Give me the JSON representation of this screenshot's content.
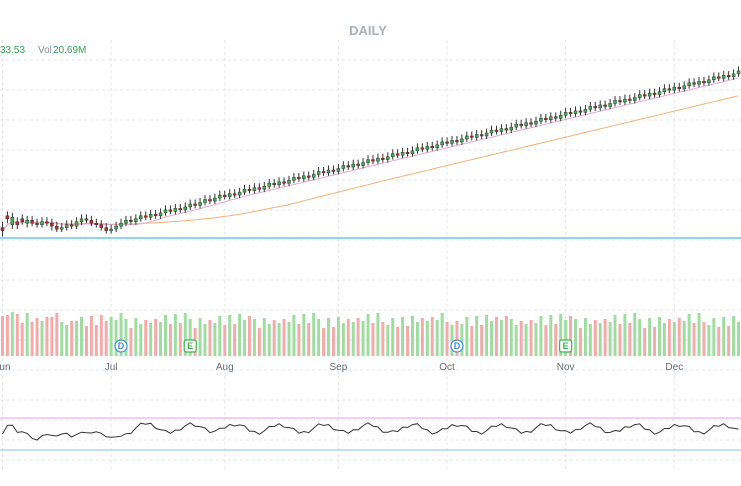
{
  "chart_data": {
    "type": "candlestick",
    "title": "DAILY",
    "info": {
      "last": "33.53",
      "vol_label": "Vol",
      "vol_value": "20.69M"
    },
    "months": [
      {
        "label": "Jun",
        "index": 0
      },
      {
        "label": "Jul",
        "index": 22
      },
      {
        "label": "Aug",
        "index": 45
      },
      {
        "label": "Sep",
        "index": 68
      },
      {
        "label": "Oct",
        "index": 90
      },
      {
        "label": "Nov",
        "index": 114
      },
      {
        "label": "Dec",
        "index": 136
      }
    ],
    "events": [
      {
        "type": "D",
        "index": 24
      },
      {
        "type": "E",
        "index": 38
      },
      {
        "type": "E",
        "index": 114
      },
      {
        "type": "D",
        "index": 92
      }
    ],
    "candles": [
      [
        0,
        178,
        176,
        182,
        172
      ],
      [
        1,
        186,
        184,
        189,
        181
      ],
      [
        2,
        180,
        185,
        188,
        177
      ],
      [
        3,
        182,
        180,
        185,
        177
      ],
      [
        4,
        184,
        182,
        187,
        180
      ],
      [
        5,
        181,
        183,
        186,
        178
      ],
      [
        6,
        183,
        181,
        186,
        179
      ],
      [
        7,
        181,
        180,
        184,
        178
      ],
      [
        8,
        180,
        182,
        185,
        178
      ],
      [
        9,
        182,
        181,
        185,
        179
      ],
      [
        10,
        181,
        179,
        184,
        176
      ],
      [
        11,
        179,
        177,
        182,
        175
      ],
      [
        12,
        177,
        178,
        181,
        175
      ],
      [
        13,
        178,
        180,
        183,
        176
      ],
      [
        14,
        180,
        179,
        183,
        177
      ],
      [
        15,
        179,
        182,
        185,
        177
      ],
      [
        16,
        182,
        184,
        187,
        180
      ],
      [
        17,
        184,
        183,
        187,
        181
      ],
      [
        18,
        183,
        181,
        186,
        179
      ],
      [
        19,
        181,
        180,
        184,
        178
      ],
      [
        20,
        180,
        178,
        183,
        176
      ],
      [
        21,
        178,
        176,
        181,
        174
      ],
      [
        22,
        176,
        177,
        180,
        174
      ],
      [
        23,
        177,
        179,
        182,
        175
      ],
      [
        24,
        179,
        181,
        184,
        177
      ],
      [
        25,
        181,
        183,
        186,
        179
      ],
      [
        26,
        183,
        182,
        186,
        180
      ],
      [
        27,
        182,
        184,
        187,
        180
      ],
      [
        28,
        184,
        186,
        189,
        182
      ],
      [
        29,
        186,
        185,
        189,
        183
      ],
      [
        30,
        185,
        187,
        190,
        183
      ],
      [
        31,
        187,
        186,
        190,
        184
      ],
      [
        32,
        186,
        188,
        191,
        184
      ],
      [
        33,
        188,
        190,
        193,
        186
      ],
      [
        34,
        190,
        189,
        193,
        187
      ],
      [
        35,
        189,
        191,
        194,
        187
      ],
      [
        36,
        191,
        190,
        194,
        188
      ],
      [
        37,
        190,
        192,
        195,
        188
      ],
      [
        38,
        192,
        194,
        197,
        190
      ],
      [
        39,
        194,
        193,
        197,
        191
      ],
      [
        40,
        193,
        195,
        198,
        191
      ],
      [
        41,
        195,
        197,
        200,
        193
      ],
      [
        42,
        197,
        196,
        200,
        194
      ],
      [
        43,
        196,
        198,
        201,
        194
      ],
      [
        44,
        198,
        200,
        203,
        196
      ],
      [
        45,
        200,
        199,
        203,
        197
      ],
      [
        46,
        199,
        201,
        204,
        197
      ],
      [
        47,
        201,
        200,
        204,
        198
      ],
      [
        48,
        200,
        202,
        205,
        198
      ],
      [
        49,
        202,
        204,
        207,
        200
      ],
      [
        50,
        204,
        203,
        207,
        201
      ],
      [
        51,
        203,
        205,
        208,
        201
      ],
      [
        52,
        205,
        204,
        208,
        202
      ],
      [
        53,
        204,
        206,
        209,
        202
      ],
      [
        54,
        206,
        208,
        211,
        204
      ],
      [
        55,
        208,
        207,
        211,
        205
      ],
      [
        56,
        207,
        209,
        212,
        205
      ],
      [
        57,
        209,
        208,
        212,
        206
      ],
      [
        58,
        208,
        210,
        213,
        206
      ],
      [
        59,
        210,
        212,
        215,
        208
      ],
      [
        60,
        212,
        211,
        215,
        209
      ],
      [
        61,
        211,
        213,
        216,
        209
      ],
      [
        62,
        213,
        212,
        216,
        210
      ],
      [
        63,
        212,
        214,
        217,
        210
      ],
      [
        64,
        214,
        216,
        219,
        212
      ],
      [
        65,
        216,
        215,
        219,
        213
      ],
      [
        66,
        215,
        217,
        220,
        213
      ],
      [
        67,
        217,
        216,
        220,
        214
      ],
      [
        68,
        216,
        218,
        221,
        214
      ],
      [
        69,
        218,
        220,
        223,
        216
      ],
      [
        70,
        220,
        219,
        223,
        217
      ],
      [
        71,
        219,
        221,
        224,
        217
      ],
      [
        72,
        221,
        220,
        224,
        218
      ],
      [
        73,
        220,
        222,
        225,
        218
      ],
      [
        74,
        222,
        224,
        227,
        220
      ],
      [
        75,
        224,
        223,
        227,
        221
      ],
      [
        76,
        223,
        225,
        228,
        221
      ],
      [
        77,
        225,
        224,
        228,
        222
      ],
      [
        78,
        224,
        226,
        229,
        222
      ],
      [
        79,
        226,
        228,
        231,
        224
      ],
      [
        80,
        228,
        227,
        231,
        225
      ],
      [
        81,
        227,
        229,
        232,
        225
      ],
      [
        82,
        229,
        228,
        232,
        226
      ],
      [
        83,
        228,
        230,
        233,
        226
      ],
      [
        84,
        230,
        232,
        235,
        228
      ],
      [
        85,
        232,
        231,
        235,
        229
      ],
      [
        86,
        231,
        233,
        236,
        229
      ],
      [
        87,
        233,
        232,
        236,
        230
      ],
      [
        88,
        232,
        234,
        237,
        230
      ],
      [
        89,
        234,
        236,
        239,
        232
      ],
      [
        90,
        236,
        235,
        239,
        233
      ],
      [
        91,
        235,
        237,
        240,
        233
      ],
      [
        92,
        237,
        236,
        240,
        234
      ],
      [
        93,
        236,
        238,
        241,
        234
      ],
      [
        94,
        238,
        240,
        243,
        236
      ],
      [
        95,
        240,
        239,
        243,
        237
      ],
      [
        96,
        239,
        241,
        244,
        237
      ],
      [
        97,
        241,
        240,
        244,
        238
      ],
      [
        98,
        240,
        242,
        245,
        238
      ],
      [
        99,
        242,
        244,
        247,
        240
      ],
      [
        100,
        244,
        243,
        247,
        241
      ],
      [
        101,
        243,
        245,
        248,
        241
      ],
      [
        102,
        245,
        244,
        248,
        242
      ],
      [
        103,
        244,
        246,
        249,
        242
      ],
      [
        104,
        246,
        248,
        251,
        244
      ],
      [
        105,
        248,
        247,
        251,
        245
      ],
      [
        106,
        247,
        249,
        252,
        245
      ],
      [
        107,
        249,
        248,
        252,
        246
      ],
      [
        108,
        248,
        250,
        253,
        246
      ],
      [
        109,
        250,
        252,
        255,
        248
      ],
      [
        110,
        252,
        251,
        255,
        249
      ],
      [
        111,
        251,
        253,
        256,
        249
      ],
      [
        112,
        253,
        252,
        256,
        250
      ],
      [
        113,
        252,
        254,
        257,
        250
      ],
      [
        114,
        254,
        256,
        259,
        252
      ],
      [
        115,
        256,
        255,
        259,
        253
      ],
      [
        116,
        255,
        257,
        260,
        253
      ],
      [
        117,
        257,
        256,
        260,
        254
      ],
      [
        118,
        256,
        258,
        261,
        254
      ],
      [
        119,
        258,
        260,
        263,
        256
      ],
      [
        120,
        260,
        259,
        263,
        257
      ],
      [
        121,
        259,
        261,
        264,
        257
      ],
      [
        122,
        261,
        260,
        264,
        258
      ],
      [
        123,
        260,
        262,
        265,
        258
      ],
      [
        124,
        262,
        264,
        267,
        260
      ],
      [
        125,
        264,
        263,
        267,
        261
      ],
      [
        126,
        263,
        265,
        268,
        261
      ],
      [
        127,
        265,
        264,
        268,
        262
      ],
      [
        128,
        264,
        266,
        269,
        262
      ],
      [
        129,
        266,
        268,
        271,
        264
      ],
      [
        130,
        268,
        267,
        271,
        265
      ],
      [
        131,
        267,
        269,
        272,
        265
      ],
      [
        132,
        269,
        268,
        272,
        266
      ],
      [
        133,
        268,
        270,
        273,
        266
      ],
      [
        134,
        270,
        272,
        275,
        268
      ],
      [
        135,
        272,
        271,
        275,
        269
      ],
      [
        136,
        271,
        273,
        276,
        269
      ],
      [
        137,
        273,
        272,
        276,
        270
      ],
      [
        138,
        272,
        274,
        277,
        270
      ],
      [
        139,
        274,
        276,
        279,
        272
      ],
      [
        140,
        276,
        275,
        279,
        273
      ],
      [
        141,
        275,
        277,
        280,
        273
      ],
      [
        142,
        277,
        276,
        280,
        274
      ],
      [
        143,
        276,
        278,
        281,
        274
      ],
      [
        144,
        278,
        280,
        283,
        276
      ],
      [
        145,
        280,
        279,
        283,
        277
      ],
      [
        146,
        279,
        281,
        284,
        277
      ],
      [
        147,
        281,
        280,
        284,
        278
      ],
      [
        148,
        280,
        282,
        285,
        278
      ],
      [
        149,
        282,
        284,
        287,
        280
      ]
    ]
  }
}
